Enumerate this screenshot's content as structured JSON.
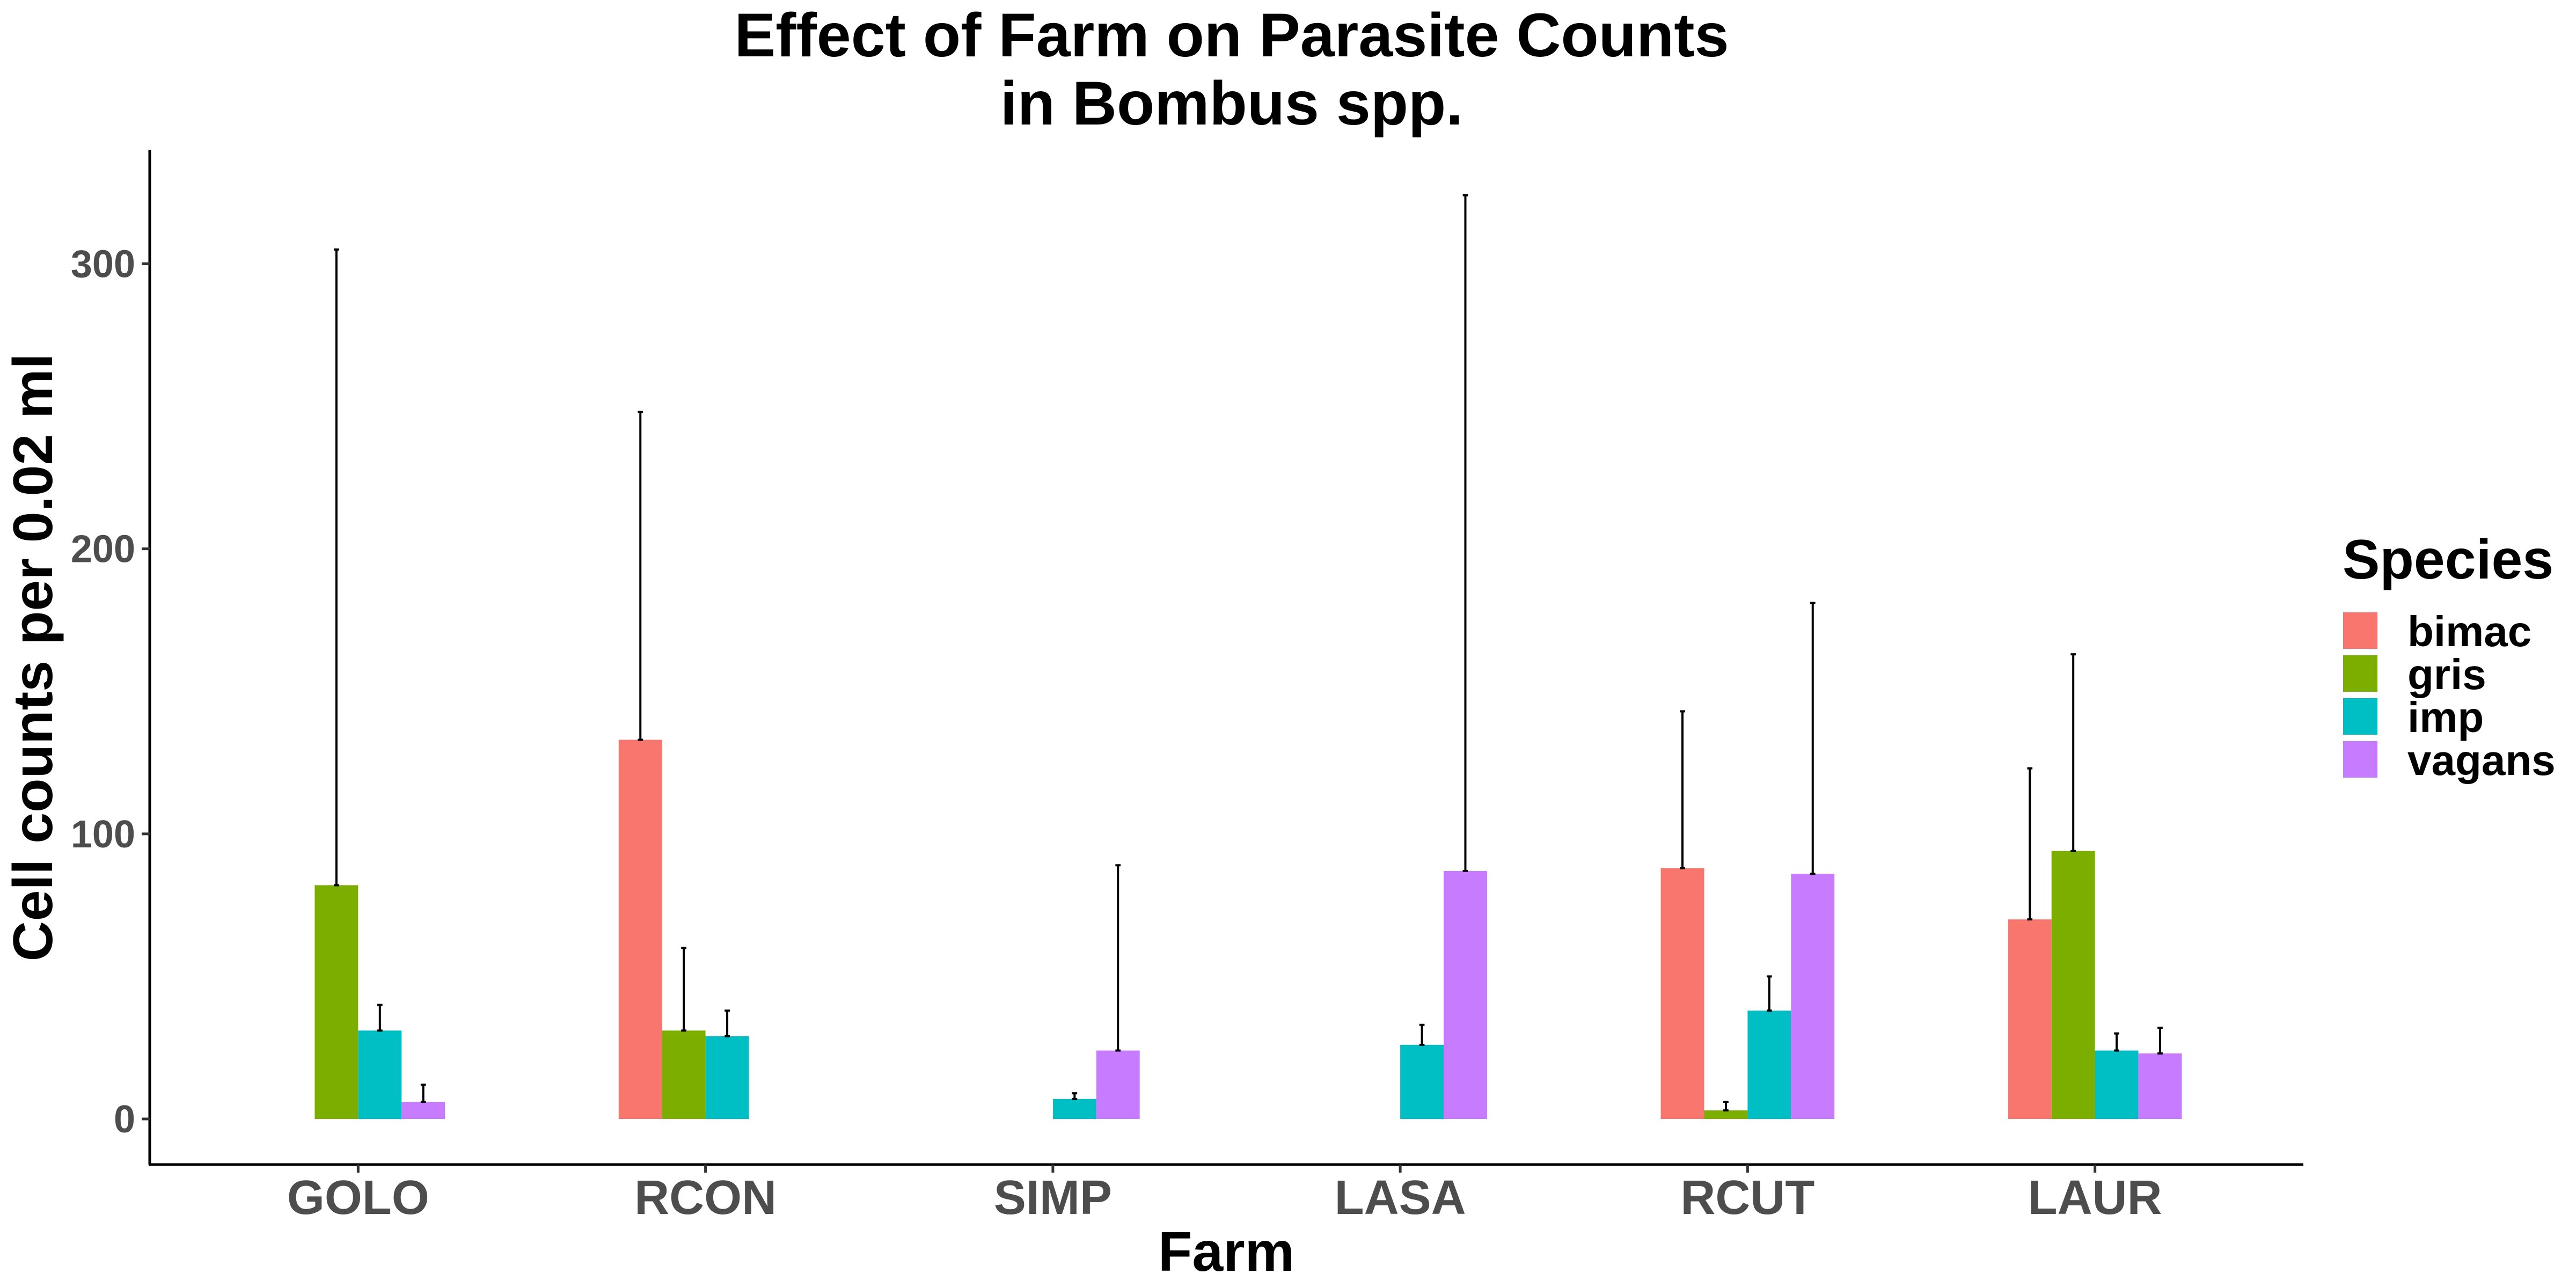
{
  "chart_data": {
    "type": "bar",
    "title_line1": "Effect of Farm on Parasite Counts",
    "title_line2": "in Bombus spp.",
    "xlabel": "Farm",
    "ylabel": "Cell counts per 0.02 ml",
    "categories": [
      "GOLO",
      "RCON",
      "SIMP",
      "LASA",
      "RCUT",
      "LAUR"
    ],
    "yticks": [
      0,
      100,
      200,
      300
    ],
    "ylim": [
      -16,
      340
    ],
    "legend_title": "Species",
    "legend_position": "right",
    "grid": false,
    "series": [
      {
        "name": "bimac",
        "color": "#F8766D",
        "values": [
          null,
          133,
          null,
          null,
          88,
          70
        ],
        "err_upper": [
          null,
          248,
          null,
          null,
          143,
          123
        ]
      },
      {
        "name": "gris",
        "color": "#7CAE00",
        "values": [
          82,
          31,
          null,
          null,
          3,
          94
        ],
        "err_upper": [
          305,
          60,
          null,
          null,
          6,
          163
        ]
      },
      {
        "name": "imp",
        "color": "#00BFC4",
        "values": [
          31,
          29,
          7,
          26,
          38,
          24
        ],
        "err_upper": [
          40,
          38,
          9,
          33,
          50,
          30
        ]
      },
      {
        "name": "vagans",
        "color": "#C77CFF",
        "values": [
          6,
          null,
          24,
          87,
          86,
          23
        ],
        "err_upper": [
          12,
          null,
          89,
          324,
          181,
          32
        ]
      }
    ]
  }
}
